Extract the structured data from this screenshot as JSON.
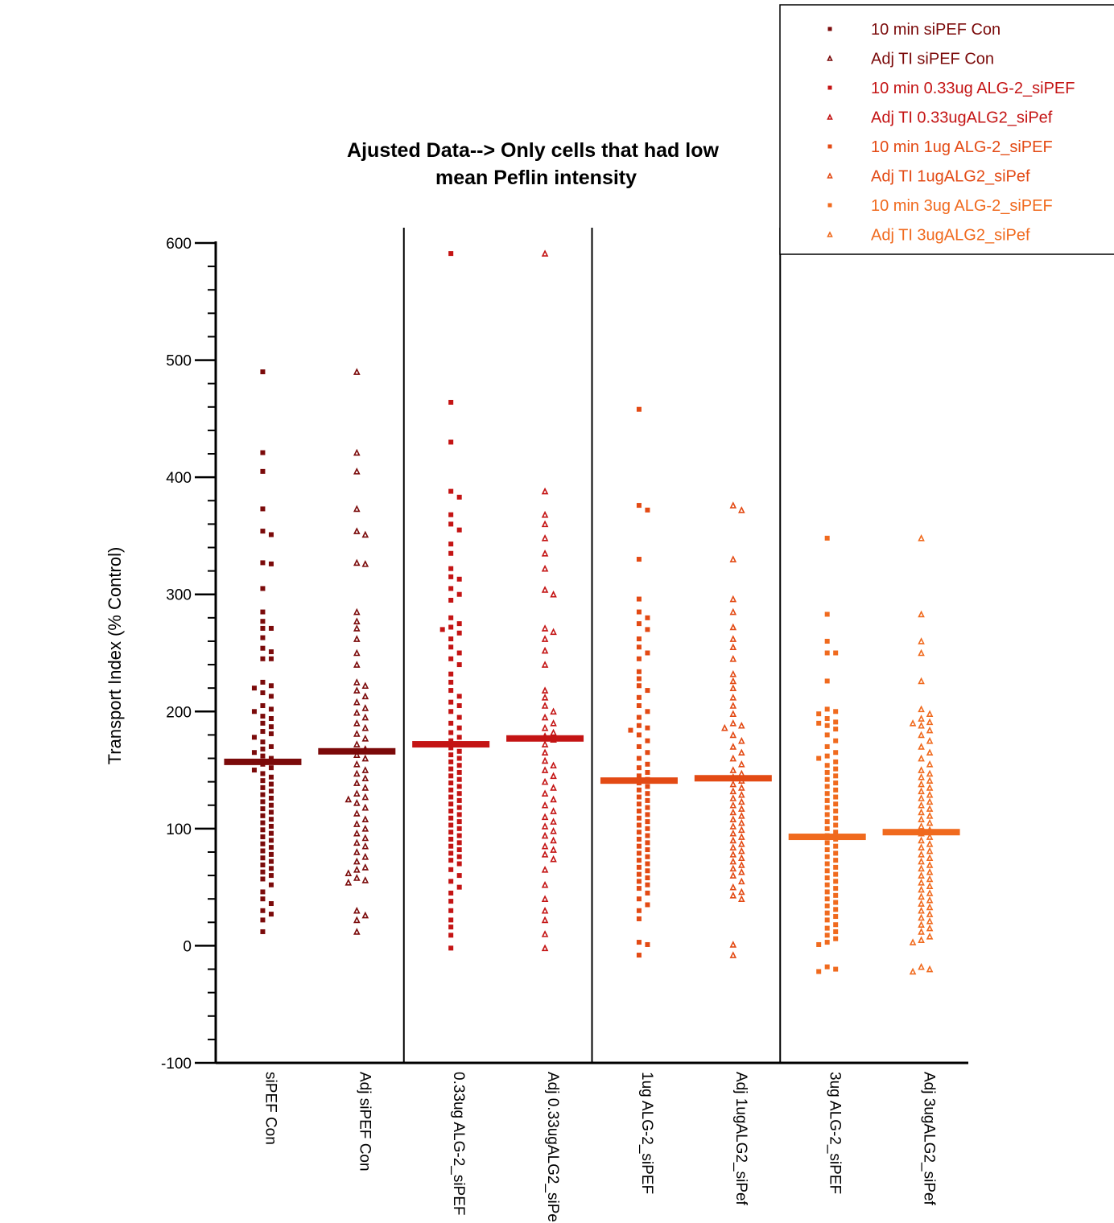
{
  "chart_data": {
    "type": "scatter",
    "subtype": "dot-plot-with-mean",
    "title_lines": [
      "Ajusted Data--> Only  cells that had low",
      "mean Peflin intensity"
    ],
    "ylabel": "Transport Index (% Control)",
    "ylim": [
      -100,
      600
    ],
    "yticks": [
      "600",
      "500",
      "400",
      "300",
      "200",
      "100",
      "0",
      "-100"
    ],
    "categories": [
      "siPEF Con",
      "Adj siPEF Con",
      "0.33ug ALG-2_siPEF",
      "Adj 0.33ugALG2_siPe",
      "1ug ALG-2_siPEF",
      "Adj 1ugALG2_siPef",
      "3ug ALG-2_siPEF",
      "Adj 3ugALG2_siPef"
    ],
    "legend_position": "top-right",
    "legend": [
      {
        "label": "10 min siPEF Con",
        "marker": "square",
        "color": "#7b0a0a"
      },
      {
        "label": "Adj TI siPEF Con",
        "marker": "triangle",
        "color": "#7b0a0a"
      },
      {
        "label": "10 min 0.33ug ALG-2_siPEF",
        "marker": "square",
        "color": "#c41414"
      },
      {
        "label": "Adj TI 0.33ugALG2_siPef",
        "marker": "triangle",
        "color": "#c41414"
      },
      {
        "label": "10 min 1ug ALG-2_siPEF",
        "marker": "square",
        "color": "#e34a14"
      },
      {
        "label": "Adj TI 1ugALG2_siPef",
        "marker": "triangle",
        "color": "#e34a14"
      },
      {
        "label": "10 min 3ug ALG-2_siPEF",
        "marker": "square",
        "color": "#f06a1e"
      },
      {
        "label": "Adj TI 3ugALG2_siPef",
        "marker": "triangle",
        "color": "#f06a1e"
      }
    ],
    "series": [
      {
        "marker": "square",
        "color": "#7b0a0a",
        "mean": 157,
        "values": [
          490,
          421,
          405,
          373,
          354,
          351,
          327,
          326,
          305,
          285,
          277,
          271,
          271,
          263,
          254,
          251,
          245,
          245,
          225,
          222,
          220,
          216,
          213,
          205,
          202,
          200,
          196,
          194,
          190,
          187,
          183,
          181,
          178,
          174,
          170,
          168,
          165,
          162,
          160,
          157,
          155,
          152,
          150,
          147,
          144,
          141,
          138,
          135,
          132,
          129,
          126,
          123,
          120,
          117,
          114,
          111,
          108,
          105,
          102,
          99,
          96,
          93,
          90,
          87,
          84,
          81,
          78,
          75,
          72,
          69,
          66,
          63,
          60,
          57,
          52,
          46,
          40,
          36,
          30,
          27,
          22,
          12
        ]
      },
      {
        "marker": "triangle",
        "color": "#7b0a0a",
        "mean": 166,
        "values": [
          490,
          421,
          405,
          373,
          354,
          351,
          327,
          326,
          285,
          277,
          271,
          262,
          250,
          240,
          225,
          222,
          218,
          213,
          208,
          203,
          199,
          195,
          190,
          186,
          181,
          177,
          172,
          168,
          163,
          160,
          155,
          150,
          147,
          143,
          139,
          135,
          130,
          127,
          125,
          122,
          118,
          113,
          108,
          104,
          100,
          96,
          92,
          88,
          85,
          80,
          76,
          72,
          67,
          65,
          62,
          58,
          56,
          54,
          30,
          26,
          22,
          12
        ]
      },
      {
        "marker": "square",
        "color": "#c41414",
        "mean": 172,
        "values": [
          591,
          464,
          430,
          388,
          383,
          368,
          360,
          355,
          343,
          335,
          322,
          315,
          313,
          305,
          300,
          295,
          280,
          275,
          272,
          270,
          267,
          262,
          255,
          250,
          245,
          240,
          232,
          225,
          218,
          213,
          208,
          205,
          200,
          195,
          190,
          186,
          182,
          178,
          175,
          172,
          169,
          166,
          163,
          160,
          157,
          154,
          151,
          148,
          145,
          142,
          139,
          136,
          133,
          130,
          127,
          124,
          121,
          118,
          115,
          112,
          109,
          106,
          103,
          100,
          97,
          94,
          91,
          88,
          85,
          82,
          79,
          76,
          73,
          70,
          65,
          60,
          55,
          50,
          45,
          38,
          30,
          22,
          16,
          9,
          -2
        ]
      },
      {
        "marker": "triangle",
        "color": "#c41414",
        "mean": 177,
        "values": [
          591,
          388,
          368,
          360,
          348,
          335,
          322,
          304,
          300,
          271,
          268,
          262,
          252,
          240,
          218,
          212,
          205,
          200,
          195,
          190,
          186,
          182,
          179,
          176,
          172,
          165,
          158,
          154,
          150,
          145,
          140,
          135,
          130,
          125,
          120,
          115,
          110,
          106,
          102,
          98,
          94,
          90,
          85,
          82,
          78,
          74,
          65,
          52,
          40,
          30,
          22,
          10,
          -2
        ]
      },
      {
        "marker": "square",
        "color": "#e34a14",
        "mean": 141,
        "values": [
          458,
          376,
          372,
          330,
          296,
          285,
          280,
          275,
          270,
          262,
          255,
          250,
          245,
          234,
          228,
          222,
          218,
          212,
          205,
          200,
          195,
          188,
          186,
          184,
          180,
          175,
          170,
          165,
          160,
          155,
          152,
          148,
          145,
          142,
          139,
          136,
          133,
          130,
          127,
          124,
          121,
          118,
          115,
          112,
          109,
          106,
          103,
          100,
          97,
          94,
          91,
          88,
          85,
          82,
          79,
          76,
          73,
          70,
          67,
          64,
          61,
          58,
          55,
          52,
          49,
          45,
          40,
          35,
          30,
          23,
          3,
          1,
          -8
        ]
      },
      {
        "marker": "triangle",
        "color": "#e34a14",
        "mean": 143,
        "values": [
          376,
          372,
          330,
          296,
          285,
          272,
          262,
          255,
          245,
          232,
          226,
          220,
          212,
          205,
          198,
          190,
          188,
          186,
          180,
          175,
          170,
          165,
          160,
          155,
          150,
          147,
          144,
          141,
          138,
          135,
          132,
          129,
          126,
          123,
          120,
          117,
          114,
          111,
          108,
          105,
          102,
          99,
          96,
          93,
          90,
          87,
          84,
          81,
          78,
          75,
          72,
          69,
          66,
          63,
          60,
          55,
          50,
          46,
          43,
          40,
          1,
          -8
        ]
      },
      {
        "marker": "square",
        "color": "#f06a1e",
        "mean": 93,
        "values": [
          348,
          283,
          260,
          250,
          250,
          226,
          202,
          200,
          198,
          194,
          191,
          190,
          188,
          185,
          180,
          175,
          170,
          165,
          162,
          160,
          157,
          154,
          151,
          148,
          145,
          142,
          139,
          136,
          133,
          130,
          127,
          124,
          121,
          118,
          115,
          112,
          109,
          106,
          103,
          100,
          97,
          94,
          91,
          88,
          85,
          82,
          79,
          76,
          73,
          70,
          67,
          64,
          61,
          58,
          55,
          52,
          49,
          46,
          43,
          40,
          37,
          34,
          31,
          28,
          25,
          22,
          18,
          15,
          12,
          9,
          6,
          3,
          1,
          -18,
          -20,
          -22
        ]
      },
      {
        "marker": "triangle",
        "color": "#f06a1e",
        "mean": 97,
        "values": [
          348,
          283,
          260,
          250,
          226,
          202,
          198,
          194,
          191,
          190,
          188,
          184,
          180,
          175,
          170,
          165,
          160,
          155,
          150,
          147,
          144,
          141,
          138,
          135,
          132,
          129,
          126,
          123,
          120,
          117,
          114,
          111,
          108,
          105,
          102,
          99,
          96,
          93,
          90,
          87,
          84,
          81,
          78,
          75,
          72,
          69,
          66,
          63,
          60,
          57,
          54,
          51,
          48,
          45,
          42,
          39,
          36,
          33,
          30,
          27,
          24,
          21,
          18,
          15,
          12,
          8,
          5,
          3,
          -18,
          -20,
          -22
        ]
      }
    ]
  }
}
